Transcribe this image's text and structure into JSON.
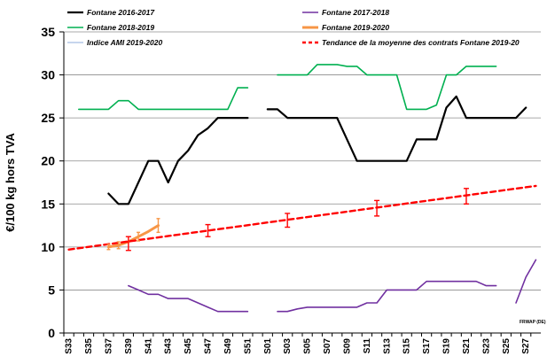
{
  "chart_data": {
    "type": "line",
    "ylabel": "€/100 kg hors TVA",
    "ylim": [
      0,
      35
    ],
    "yticks": [
      0,
      5,
      10,
      15,
      20,
      25,
      30,
      35
    ],
    "x_categories": [
      "S33",
      "S34",
      "S35",
      "S36",
      "S37",
      "S38",
      "S39",
      "S40",
      "S41",
      "S42",
      "S43",
      "S44",
      "S45",
      "S46",
      "S47",
      "S48",
      "S49",
      "S50",
      "S51",
      "S52",
      "S01",
      "S02",
      "S03",
      "S04",
      "S05",
      "S06",
      "S07",
      "S08",
      "S09",
      "S10",
      "S11",
      "S12",
      "S13",
      "S14",
      "S15",
      "S16",
      "S17",
      "S18",
      "S19",
      "S20",
      "S21",
      "S22",
      "S23",
      "S24",
      "S25",
      "S26",
      "S27",
      "S28"
    ],
    "x_tick_labels": [
      "S33",
      "S35",
      "S37",
      "S39",
      "S41",
      "S43",
      "S45",
      "S47",
      "S49",
      "S51",
      "S01",
      "S03",
      "S05",
      "S07",
      "S09",
      "S11",
      "S13",
      "S15",
      "S17",
      "S19",
      "S21",
      "S23",
      "S25",
      "S27"
    ],
    "grid": "horizontal",
    "legend_position": "top",
    "annotation": "FRWAP (DE)",
    "series": [
      {
        "name": "Fontane 2016-2017",
        "color": "#000000",
        "width": 2.2,
        "dash": "",
        "segments": [
          [
            [
              "S37",
              16.2
            ],
            [
              "S38",
              15
            ],
            [
              "S39",
              15
            ],
            [
              "S40",
              17.5
            ],
            [
              "S41",
              20
            ],
            [
              "S42",
              20
            ],
            [
              "S43",
              17.5
            ],
            [
              "S44",
              20
            ],
            [
              "S45",
              21.2
            ],
            [
              "S46",
              23
            ],
            [
              "S47",
              23.8
            ],
            [
              "S48",
              25
            ],
            [
              "S49",
              25
            ],
            [
              "S50",
              25
            ],
            [
              "S51",
              25
            ]
          ],
          [
            [
              "S01",
              26
            ],
            [
              "S02",
              26
            ],
            [
              "S03",
              25
            ],
            [
              "S04",
              25
            ],
            [
              "S05",
              25
            ],
            [
              "S06",
              25
            ],
            [
              "S07",
              25
            ],
            [
              "S08",
              25
            ],
            [
              "S09",
              22.5
            ],
            [
              "S10",
              20
            ],
            [
              "S11",
              20
            ],
            [
              "S12",
              20
            ],
            [
              "S13",
              20
            ],
            [
              "S14",
              20
            ],
            [
              "S15",
              20
            ],
            [
              "S16",
              22.5
            ],
            [
              "S17",
              22.5
            ],
            [
              "S18",
              22.5
            ],
            [
              "S19",
              26.2
            ],
            [
              "S20",
              27.5
            ],
            [
              "S21",
              25
            ],
            [
              "S22",
              25
            ],
            [
              "S23",
              25
            ],
            [
              "S24",
              25
            ],
            [
              "S25",
              25
            ],
            [
              "S26",
              25
            ],
            [
              "S27",
              26.2
            ]
          ]
        ]
      },
      {
        "name": "Fontane 2017-2018",
        "color": "#7030a0",
        "width": 1.6,
        "dash": "",
        "segments": [
          [
            [
              "S39",
              5.5
            ],
            [
              "S40",
              5
            ],
            [
              "S41",
              4.5
            ],
            [
              "S42",
              4.5
            ],
            [
              "S43",
              4
            ],
            [
              "S44",
              4
            ],
            [
              "S45",
              4
            ],
            [
              "S46",
              3.5
            ],
            [
              "S47",
              3
            ],
            [
              "S48",
              2.5
            ],
            [
              "S49",
              2.5
            ],
            [
              "S50",
              2.5
            ],
            [
              "S51",
              2.5
            ]
          ],
          [
            [
              "S02",
              2.5
            ],
            [
              "S03",
              2.5
            ],
            [
              "S04",
              2.8
            ],
            [
              "S05",
              3
            ],
            [
              "S06",
              3
            ],
            [
              "S07",
              3
            ],
            [
              "S08",
              3
            ],
            [
              "S09",
              3
            ],
            [
              "S10",
              3
            ],
            [
              "S11",
              3.5
            ],
            [
              "S12",
              3.5
            ],
            [
              "S13",
              5
            ],
            [
              "S14",
              5
            ],
            [
              "S15",
              5
            ],
            [
              "S16",
              5
            ],
            [
              "S17",
              6
            ],
            [
              "S18",
              6
            ],
            [
              "S19",
              6
            ],
            [
              "S20",
              6
            ],
            [
              "S21",
              6
            ],
            [
              "S22",
              6
            ],
            [
              "S23",
              5.5
            ],
            [
              "S24",
              5.5
            ]
          ],
          [
            [
              "S26",
              3.5
            ],
            [
              "S27",
              6.5
            ],
            [
              "S28",
              8.5
            ]
          ]
        ]
      },
      {
        "name": "Fontane 2018-2019",
        "color": "#00b050",
        "width": 1.6,
        "dash": "",
        "segments": [
          [
            [
              "S34",
              26
            ],
            [
              "S35",
              26
            ],
            [
              "S36",
              26
            ],
            [
              "S37",
              26
            ],
            [
              "S38",
              27
            ],
            [
              "S39",
              27
            ],
            [
              "S40",
              26
            ],
            [
              "S41",
              26
            ],
            [
              "S42",
              26
            ],
            [
              "S43",
              26
            ],
            [
              "S44",
              26
            ],
            [
              "S45",
              26
            ],
            [
              "S46",
              26
            ],
            [
              "S47",
              26
            ],
            [
              "S48",
              26
            ],
            [
              "S49",
              26
            ],
            [
              "S50",
              28.5
            ],
            [
              "S51",
              28.5
            ]
          ],
          [
            [
              "S02",
              30
            ],
            [
              "S03",
              30
            ],
            [
              "S04",
              30
            ],
            [
              "S05",
              30
            ],
            [
              "S06",
              31.2
            ],
            [
              "S07",
              31.2
            ],
            [
              "S08",
              31.2
            ],
            [
              "S09",
              31
            ],
            [
              "S10",
              31
            ],
            [
              "S11",
              30
            ],
            [
              "S12",
              30
            ],
            [
              "S13",
              30
            ],
            [
              "S14",
              30
            ],
            [
              "S15",
              26
            ],
            [
              "S16",
              26
            ],
            [
              "S17",
              26
            ],
            [
              "S18",
              26.5
            ],
            [
              "S19",
              30
            ],
            [
              "S20",
              30
            ],
            [
              "S21",
              31
            ],
            [
              "S22",
              31
            ],
            [
              "S23",
              31
            ],
            [
              "S24",
              31
            ]
          ]
        ]
      },
      {
        "name": "Fontane 2019-2020",
        "color": "#f79646",
        "width": 3,
        "dash": "",
        "segments": [
          [
            [
              "S37",
              10
            ],
            [
              "S38",
              10.2
            ],
            [
              "S39",
              10.6
            ],
            [
              "S40",
              11.2
            ],
            [
              "S41",
              11.8
            ],
            [
              "S42",
              12.5
            ]
          ]
        ]
      },
      {
        "name": "Indice AMI 2019-2020",
        "color": "#b4c7e7",
        "width": 1.6,
        "dash": "",
        "segments": []
      },
      {
        "name": "Tendance de la moyenne des contrats Fontane 2019-20",
        "color": "#ff0000",
        "width": 2.4,
        "dash": "6,4",
        "segments": [
          [
            [
              "S33",
              9.7
            ],
            [
              "S28",
              17.1
            ]
          ]
        ]
      }
    ],
    "error_bars": {
      "color": "#ff0000",
      "points": [
        {
          "x": "S39",
          "y": 10.4,
          "err": 0.8
        },
        {
          "x": "S47",
          "y": 11.9,
          "err": 0.7
        },
        {
          "x": "S03",
          "y": 13.1,
          "err": 0.8
        },
        {
          "x": "S12",
          "y": 14.5,
          "err": 0.9
        },
        {
          "x": "S21",
          "y": 15.9,
          "err": 0.9
        }
      ]
    },
    "orange_error_bars": {
      "color": "#f79646",
      "points": [
        {
          "x": "S37",
          "y": 10,
          "err": 0.3
        },
        {
          "x": "S38",
          "y": 10.2,
          "err": 0.4
        },
        {
          "x": "S40",
          "y": 11.2,
          "err": 0.5
        },
        {
          "x": "S42",
          "y": 12.5,
          "err": 0.8
        }
      ]
    }
  }
}
